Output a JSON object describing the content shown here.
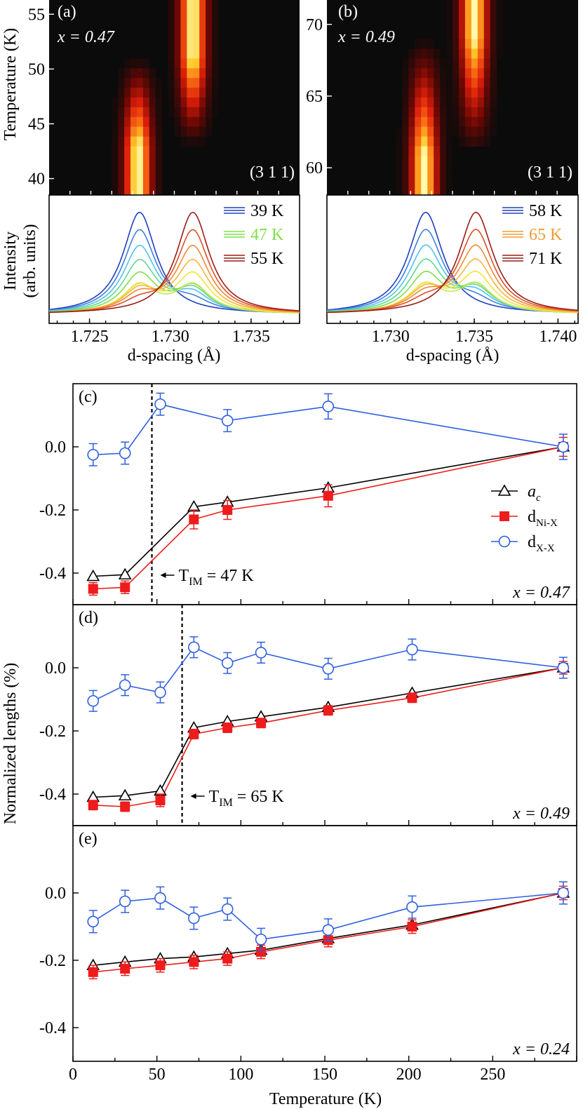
{
  "figure": {
    "y_axis_label_main": "Normalized lengths (%)",
    "x_axis_label_main": "Temperature (K)"
  },
  "chart_data": [
    {
      "panel": "a",
      "type": "heatmap",
      "label": "(a)",
      "composition": "x = 0.47",
      "reflection": "(3 1 1)",
      "ylabel": "Temperature (K)",
      "ylim": [
        38.5,
        56.3
      ],
      "yticks": [
        40,
        45,
        50,
        55
      ],
      "dlim": [
        1.7225,
        1.738
      ],
      "peak_low_temp_d": 1.728,
      "peak_high_temp_d": 1.7314,
      "transition_T": 47
    },
    {
      "panel": "b",
      "type": "heatmap",
      "label": "(b)",
      "composition": "x = 0.49",
      "reflection": "(3 1 1)",
      "ylabel": "",
      "ylim": [
        58.1,
        71.7
      ],
      "yticks": [
        60,
        65,
        70
      ],
      "dlim": [
        1.7262,
        1.7412
      ],
      "peak_low_temp_d": 1.732,
      "peak_high_temp_d": 1.735,
      "transition_T": 65
    },
    {
      "panel": "a-lower",
      "type": "line",
      "ylabel": "Intensity (arb. units)",
      "xlabel": "d-spacing (Å)",
      "xlim": [
        1.7225,
        1.738
      ],
      "xticks": [
        1.725,
        1.73,
        1.735
      ],
      "xtick_labels": [
        "1.725",
        "1.730",
        "1.735"
      ],
      "legend": [
        {
          "label": "39 K",
          "color": "#1f3fbf"
        },
        {
          "label": "47 K",
          "color": "#7ee04a"
        },
        {
          "label": "55 K",
          "color": "#9b1d14"
        }
      ],
      "curve_colors": [
        "#1f3fbf",
        "#3f7fe0",
        "#52c2ea",
        "#5fd98f",
        "#7ee04a",
        "#c6e84a",
        "#f2e23a",
        "#f5b63b",
        "#ef8a32",
        "#d9502a",
        "#9b1d14"
      ],
      "peak_low_d": 1.7281,
      "peak_high_d": 1.7314
    },
    {
      "panel": "b-lower",
      "type": "line",
      "ylabel": "",
      "xlabel": "d-spacing (Å)",
      "xlim": [
        1.7262,
        1.7412
      ],
      "xticks": [
        1.73,
        1.735,
        1.74
      ],
      "xtick_labels": [
        "1.730",
        "1.735",
        "1.740"
      ],
      "legend": [
        {
          "label": "58 K",
          "color": "#1f3fbf"
        },
        {
          "label": "65 K",
          "color": "#f59a30"
        },
        {
          "label": "71 K",
          "color": "#9b1d14"
        }
      ],
      "curve_colors": [
        "#1f3fbf",
        "#3f7fe0",
        "#52c2ea",
        "#5fd98f",
        "#7ee04a",
        "#c6e84a",
        "#f2e23a",
        "#f5b63b",
        "#ef8a32",
        "#d9502a",
        "#9b1d14"
      ],
      "peak_low_d": 1.7321,
      "peak_high_d": 1.7351
    },
    {
      "panel": "c",
      "type": "scatter",
      "label": "(c)",
      "composition": "x = 0.47",
      "ylim": [
        -0.5,
        0.2
      ],
      "yticks": [
        -0.4,
        -0.2,
        0.0
      ],
      "ytick_labels": [
        "-0.4",
        "-0.2",
        "0.0"
      ],
      "xlim": [
        0,
        300
      ],
      "transition": {
        "T": 47,
        "label": "T",
        "sub": "IM",
        "value_text": " = 47 K"
      },
      "legend": [
        {
          "name": "a",
          "sub": "c",
          "marker": "triangle",
          "italic": true
        },
        {
          "name": "d",
          "sub": "Ni-X",
          "marker": "square",
          "italic": false
        },
        {
          "name": "d",
          "sub": "X-X",
          "marker": "circle",
          "italic": false
        }
      ],
      "series": [
        {
          "name": "a_c",
          "color": "#000000",
          "marker": "triangle",
          "x": [
            12,
            31,
            72,
            92,
            152,
            292
          ],
          "y": [
            -0.41,
            -0.405,
            -0.19,
            -0.175,
            -0.13,
            0.0
          ]
        },
        {
          "name": "d_Ni-X",
          "color": "#ee1c1c",
          "marker": "square",
          "x": [
            12,
            31,
            72,
            92,
            152,
            292
          ],
          "y": [
            -0.45,
            -0.445,
            -0.23,
            -0.2,
            -0.155,
            0.0
          ],
          "err": [
            0.02,
            0.02,
            0.03,
            0.03,
            0.035,
            0.03
          ]
        },
        {
          "name": "d_X-X",
          "color": "#2f5fe0",
          "marker": "circle",
          "x": [
            12,
            31,
            52,
            92,
            152,
            292
          ],
          "y": [
            -0.025,
            -0.02,
            0.135,
            0.083,
            0.128,
            0.0
          ],
          "err": [
            0.035,
            0.035,
            0.035,
            0.035,
            0.04,
            0.04
          ]
        }
      ]
    },
    {
      "panel": "d",
      "type": "scatter",
      "label": "(d)",
      "composition": "x = 0.49",
      "ylim": [
        -0.5,
        0.2
      ],
      "yticks": [
        -0.4,
        -0.2,
        0.0
      ],
      "ytick_labels": [
        "-0.4",
        "-0.2",
        "0.0"
      ],
      "xlim": [
        0,
        300
      ],
      "transition": {
        "T": 65,
        "label": "T",
        "sub": "IM",
        "value_text": " = 65 K"
      },
      "series": [
        {
          "name": "a_c",
          "color": "#000000",
          "marker": "triangle",
          "x": [
            12,
            31,
            52,
            72,
            92,
            112,
            152,
            202,
            292
          ],
          "y": [
            -0.41,
            -0.405,
            -0.39,
            -0.19,
            -0.17,
            -0.155,
            -0.125,
            -0.08,
            0.0
          ]
        },
        {
          "name": "d_Ni-X",
          "color": "#ee1c1c",
          "marker": "square",
          "x": [
            12,
            31,
            52,
            72,
            92,
            112,
            152,
            202,
            292
          ],
          "y": [
            -0.435,
            -0.44,
            -0.42,
            -0.21,
            -0.19,
            -0.175,
            -0.135,
            -0.095,
            0.0
          ],
          "err": [
            0.015,
            0.015,
            0.02,
            0.015,
            0.015,
            0.015,
            0.015,
            0.015,
            0.02
          ]
        },
        {
          "name": "d_X-X",
          "color": "#2f5fe0",
          "marker": "circle",
          "x": [
            12,
            31,
            52,
            72,
            92,
            112,
            152,
            202,
            292
          ],
          "y": [
            -0.105,
            -0.055,
            -0.078,
            0.065,
            0.015,
            0.048,
            -0.003,
            0.058,
            0.0
          ],
          "err": [
            0.033,
            0.033,
            0.033,
            0.033,
            0.033,
            0.033,
            0.033,
            0.033,
            0.033
          ]
        }
      ]
    },
    {
      "panel": "e",
      "type": "scatter",
      "label": "(e)",
      "composition": "x = 0.24",
      "ylim": [
        -0.5,
        0.2
      ],
      "yticks": [
        -0.4,
        -0.2,
        0.0
      ],
      "ytick_labels": [
        "-0.4",
        "-0.2",
        "0.0"
      ],
      "xlim": [
        0,
        300
      ],
      "xticks": [
        0,
        50,
        100,
        150,
        200,
        250
      ],
      "xtick_labels": [
        "0",
        "50",
        "100",
        "150",
        "200",
        "250"
      ],
      "xlabel": "Temperature (K)",
      "series": [
        {
          "name": "a_c",
          "color": "#000000",
          "marker": "triangle",
          "x": [
            12,
            31,
            52,
            72,
            92,
            112,
            152,
            202,
            292
          ],
          "y": [
            -0.215,
            -0.205,
            -0.195,
            -0.19,
            -0.18,
            -0.17,
            -0.135,
            -0.095,
            0.0
          ]
        },
        {
          "name": "d_Ni-X",
          "color": "#ee1c1c",
          "marker": "square",
          "x": [
            12,
            31,
            52,
            72,
            92,
            112,
            152,
            202,
            292
          ],
          "y": [
            -0.235,
            -0.225,
            -0.215,
            -0.205,
            -0.195,
            -0.175,
            -0.14,
            -0.1,
            0.0
          ],
          "err": [
            0.02,
            0.02,
            0.02,
            0.02,
            0.02,
            0.02,
            0.02,
            0.02,
            0.02
          ]
        },
        {
          "name": "d_X-X",
          "color": "#2f5fe0",
          "marker": "circle",
          "x": [
            12,
            31,
            52,
            72,
            92,
            112,
            152,
            202,
            292
          ],
          "y": [
            -0.085,
            -0.025,
            -0.015,
            -0.075,
            -0.048,
            -0.138,
            -0.11,
            -0.042,
            0.0
          ],
          "err": [
            0.033,
            0.033,
            0.033,
            0.033,
            0.033,
            0.033,
            0.033,
            0.033,
            0.033
          ]
        }
      ]
    }
  ]
}
